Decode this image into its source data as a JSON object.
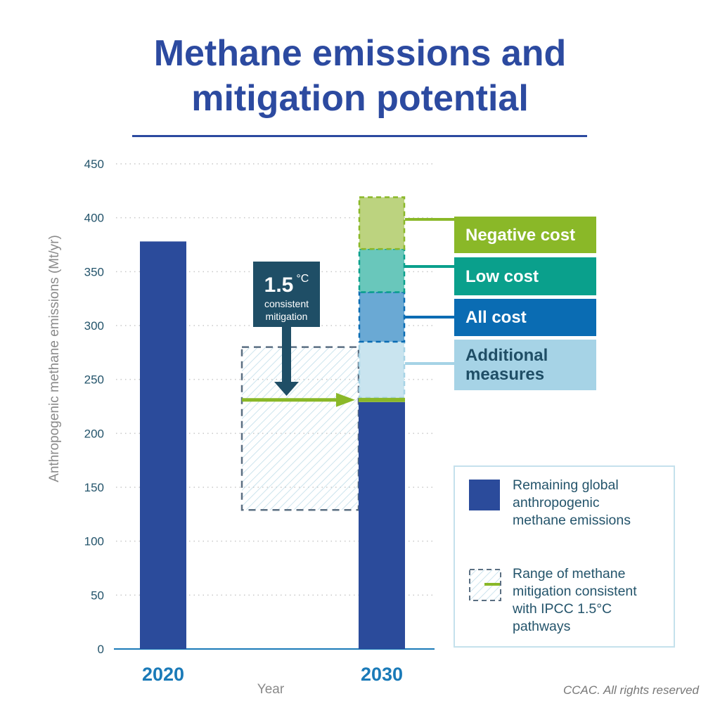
{
  "title_line1": "Methane emissions and",
  "title_line2": "mitigation potential",
  "callout": {
    "big": "1.5",
    "unit": "°C",
    "line1": "consistent",
    "line2": "mitigation"
  },
  "labels": {
    "negative": "Negative cost",
    "low": "Low cost",
    "all": "All cost",
    "additional_1": "Additional",
    "additional_2": "measures"
  },
  "legend": {
    "remaining": [
      "Remaining global",
      "anthropogenic",
      "methane emissions"
    ],
    "range": [
      "Range of methane",
      "mitigation consistent",
      "with IPCC 1.5°C",
      "pathways"
    ]
  },
  "credit": "CCAC. All rights reserved",
  "colors": {
    "title": "#2c4aa0",
    "remaining": "#2b4b9b",
    "negative": "#8ab828",
    "negative_fill": "#bcd37f",
    "low": "#0aa08c",
    "low_fill": "#69c7bb",
    "all": "#0a6cb3",
    "all_fill": "#6aa9d4",
    "additional": "#a6d3e6",
    "additional_fill": "#c9e4ef",
    "target": "#8ab828"
  },
  "chart_data": {
    "type": "bar",
    "title": "Methane emissions and mitigation potential",
    "xlabel": "Year",
    "ylabel": "Anthropogenic methane emissions (Mt/yr)",
    "ylim": [
      0,
      450
    ],
    "yticks": [
      "0",
      "50",
      "100",
      "150",
      "200",
      "250",
      "300",
      "350",
      "400",
      "450"
    ],
    "categories": [
      "2020",
      "2030"
    ],
    "remaining": [
      378,
      229
    ],
    "stack_2030": [
      {
        "name": "Additional measures",
        "from": 233,
        "to": 285
      },
      {
        "name": "All cost",
        "from": 285,
        "to": 331
      },
      {
        "name": "Low cost",
        "from": 331,
        "to": 371
      },
      {
        "name": "Negative cost",
        "from": 371,
        "to": 419
      }
    ],
    "ipcc_1_5C_range": [
      129,
      280
    ],
    "ipcc_1_5C_target": 231
  }
}
